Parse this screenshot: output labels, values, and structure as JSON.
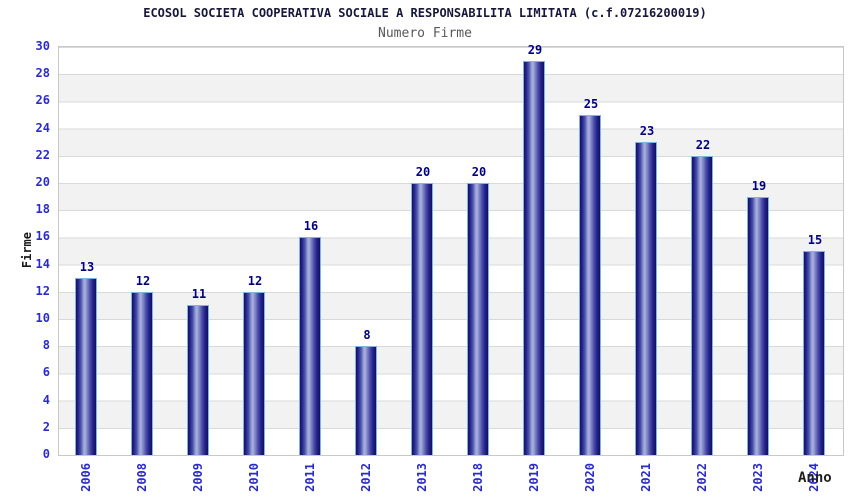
{
  "header": {
    "title": "ECOSOL SOCIETA COOPERATIVA SOCIALE A RESPONSABILITA LIMITATA (c.f.07216200019)",
    "subtitle": "Numero Firme"
  },
  "chart_data": {
    "type": "bar",
    "title": "ECOSOL SOCIETA COOPERATIVA SOCIALE A RESPONSABILITA LIMITATA (c.f.07216200019)",
    "subtitle": "Numero Firme",
    "xlabel": "Anno",
    "ylabel": "Firme",
    "categories": [
      "2006",
      "2008",
      "2009",
      "2010",
      "2011",
      "2012",
      "2013",
      "2018",
      "2019",
      "2020",
      "2021",
      "2022",
      "2023",
      "2024"
    ],
    "values": [
      13,
      12,
      11,
      12,
      16,
      8,
      20,
      20,
      29,
      25,
      23,
      22,
      19,
      15
    ],
    "ylim": [
      0,
      30
    ],
    "ytick_step": 2,
    "yticks": [
      0,
      2,
      4,
      6,
      8,
      10,
      12,
      14,
      16,
      18,
      20,
      22,
      24,
      26,
      28,
      30
    ],
    "grid": "horizontal gridlines every 2 units with alternating white/gray bands",
    "legend_position": "none",
    "colors": {
      "bar_edge": "#1b1b7e",
      "bar_center": "#aab2e0",
      "bar_border": "#7fb2e5",
      "tick_label": "#2b2bcc",
      "value_label": "#00007e",
      "title_text": "#17173a",
      "subtitle_text": "#595959",
      "band_gray": "#f2f2f2",
      "grid_line": "#d9d9d9"
    }
  }
}
